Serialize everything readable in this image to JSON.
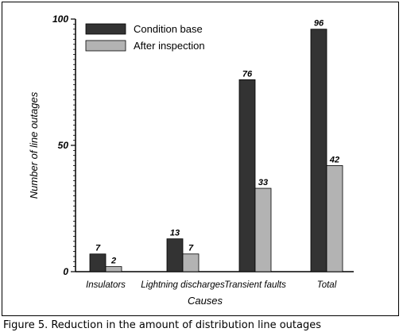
{
  "caption": "Figure 5. Reduction in the amount of distribution line outages",
  "chart_data": {
    "type": "bar",
    "categories": [
      "Insulators",
      "Lightning discharges",
      "Transient faults",
      "Total"
    ],
    "series": [
      {
        "name": "Condition base",
        "color": "#333333",
        "values": [
          7,
          13,
          76,
          96
        ]
      },
      {
        "name": "After inspection",
        "color": "#b3b3b3",
        "values": [
          2,
          7,
          33,
          42
        ]
      }
    ],
    "data_labels": [
      [
        "7",
        "13",
        "76",
        "96"
      ],
      [
        "2",
        "7",
        "33",
        "42"
      ]
    ],
    "xlabel": "Causes",
    "ylabel": "Number of line outages",
    "ylim": [
      0,
      100
    ],
    "y_ticks": [
      "0",
      "50",
      "100"
    ],
    "grid": false,
    "legend_position": "top-left"
  }
}
